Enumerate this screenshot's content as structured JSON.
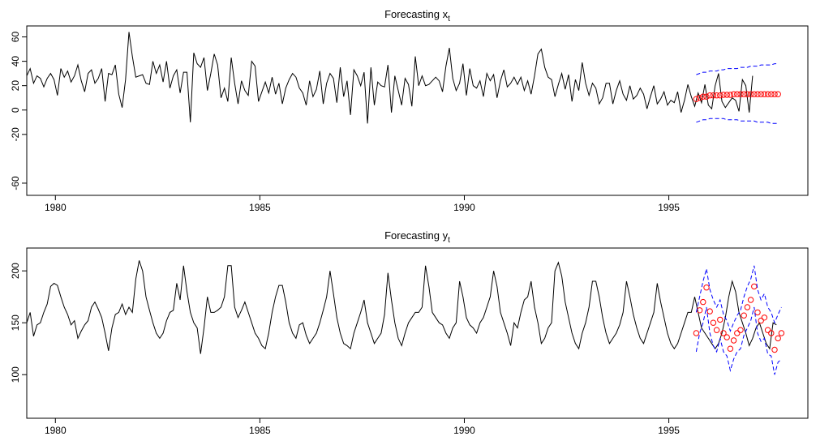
{
  "colors": {
    "series": "#000000",
    "forecast_points": "#ff0000",
    "bounds": "#0000ff"
  },
  "chart_data": [
    {
      "type": "line",
      "title": "Forecasting",
      "title_var": "x",
      "title_sub": "t",
      "xlabel": "",
      "ylabel": "",
      "xlim": [
        1979.3,
        1998.4
      ],
      "ylim": [
        -70,
        69
      ],
      "x_ticks": [
        1980,
        1985,
        1990,
        1995
      ],
      "y_ticks": [
        -60,
        -20,
        0,
        20,
        40,
        60
      ],
      "grid": false,
      "legend": "none",
      "start": 1979.3,
      "step": 0.08333,
      "series": [
        {
          "role": "observed",
          "values": [
            28,
            34,
            22,
            28,
            26,
            19,
            26,
            30,
            25,
            12,
            34,
            27,
            32,
            23,
            28,
            37,
            24,
            15,
            30,
            33,
            22,
            26,
            34,
            7,
            30,
            29,
            37,
            13,
            2,
            25,
            64,
            44,
            27,
            28,
            29,
            22,
            21,
            40,
            30,
            37,
            23,
            40,
            18,
            28,
            33,
            14,
            31,
            31,
            -10,
            47,
            38,
            35,
            43,
            16,
            30,
            46,
            37,
            10,
            18,
            7,
            43,
            22,
            5,
            24,
            16,
            12,
            40,
            36,
            7,
            15,
            23,
            14,
            27,
            13,
            22,
            5,
            18,
            25,
            30,
            27,
            18,
            14,
            4,
            24,
            11,
            17,
            32,
            5,
            22,
            30,
            26,
            6,
            35,
            11,
            24,
            -4,
            33,
            28,
            20,
            31,
            -11,
            35,
            4,
            23,
            20,
            19,
            37,
            -2,
            28,
            16,
            4,
            26,
            21,
            3,
            44,
            20,
            28,
            20,
            21,
            24,
            27,
            24,
            15,
            36,
            51,
            26,
            16,
            22,
            38,
            12,
            34,
            20,
            18,
            24,
            11,
            30,
            24,
            29,
            10,
            24,
            33,
            19,
            22,
            27,
            21,
            27,
            16,
            24,
            13,
            28,
            46,
            50,
            35,
            27,
            25,
            11,
            21,
            30,
            17,
            29,
            7,
            25,
            16,
            39,
            22,
            12,
            22,
            18,
            5,
            10,
            22,
            22,
            5,
            16,
            24,
            13,
            8,
            20,
            9,
            12,
            18,
            13,
            1,
            11,
            20,
            5,
            9,
            15,
            4,
            8,
            6,
            15,
            -2,
            8,
            21,
            11,
            3,
            14,
            6,
            21,
            4,
            1,
            20,
            30,
            7,
            2,
            6,
            10,
            8,
            -1,
            25,
            20,
            -2,
            28
          ]
        },
        {
          "role": "forecast",
          "start": 1995.67,
          "values": [
            9,
            10,
            11,
            11,
            12,
            12,
            12,
            12,
            12.5,
            12.5,
            12.5,
            13,
            13,
            13,
            13,
            13,
            13,
            13,
            13,
            13,
            13,
            13,
            13,
            13,
            13
          ]
        },
        {
          "role": "upper",
          "start": 1995.67,
          "values": [
            29,
            30,
            31,
            31,
            32,
            32,
            32,
            33,
            33,
            34,
            34,
            34,
            34,
            35,
            35,
            35,
            36,
            36,
            36,
            37,
            37,
            37,
            37,
            38,
            38
          ]
        },
        {
          "role": "lower",
          "start": 1995.67,
          "values": [
            -10,
            -9,
            -8,
            -8,
            -7,
            -7,
            -7,
            -7,
            -7,
            -8,
            -8,
            -8,
            -8,
            -9,
            -9,
            -9,
            -9,
            -9,
            -10,
            -10,
            -10,
            -10,
            -11,
            -11,
            -11
          ]
        }
      ]
    },
    {
      "type": "line",
      "title": "Forecasting",
      "title_var": "y",
      "title_sub": "t",
      "xlabel": "",
      "ylabel": "",
      "xlim": [
        1979.3,
        1998.4
      ],
      "ylim": [
        58,
        222
      ],
      "x_ticks": [
        1980,
        1985,
        1990,
        1995
      ],
      "y_ticks": [
        100,
        150,
        200
      ],
      "grid": false,
      "legend": "none",
      "start": 1979.3,
      "step": 0.08333,
      "series": [
        {
          "role": "observed",
          "values": [
            150,
            160,
            137,
            148,
            150,
            160,
            168,
            185,
            188,
            186,
            175,
            165,
            158,
            148,
            152,
            135,
            142,
            148,
            152,
            165,
            170,
            163,
            155,
            140,
            123,
            145,
            158,
            160,
            168,
            158,
            165,
            160,
            192,
            210,
            200,
            175,
            162,
            150,
            140,
            135,
            140,
            152,
            160,
            162,
            188,
            172,
            205,
            180,
            160,
            150,
            145,
            120,
            145,
            175,
            160,
            160,
            162,
            165,
            175,
            205,
            205,
            165,
            155,
            162,
            170,
            160,
            150,
            140,
            135,
            128,
            125,
            140,
            160,
            175,
            186,
            186,
            170,
            150,
            140,
            135,
            148,
            150,
            138,
            130,
            135,
            140,
            150,
            162,
            175,
            200,
            178,
            155,
            140,
            130,
            128,
            125,
            140,
            150,
            160,
            172,
            150,
            140,
            130,
            135,
            140,
            158,
            198,
            172,
            150,
            135,
            128,
            140,
            150,
            155,
            160,
            160,
            165,
            205,
            185,
            160,
            155,
            150,
            148,
            140,
            135,
            145,
            150,
            190,
            175,
            155,
            148,
            145,
            140,
            150,
            155,
            165,
            175,
            200,
            185,
            160,
            150,
            140,
            128,
            150,
            145,
            160,
            172,
            175,
            190,
            165,
            150,
            130,
            135,
            145,
            150,
            200,
            208,
            195,
            170,
            155,
            140,
            130,
            125,
            140,
            150,
            165,
            190,
            190,
            175,
            155,
            140,
            130,
            135,
            140,
            148,
            160,
            190,
            175,
            158,
            145,
            135,
            130,
            140,
            150,
            160,
            188,
            170,
            155,
            140,
            130,
            125,
            130,
            140,
            150,
            160,
            160,
            175,
            160,
            145,
            140,
            135,
            130,
            125,
            130,
            140,
            155,
            175,
            190,
            180,
            160,
            150,
            140,
            128,
            135,
            145,
            150,
            140,
            130,
            125,
            150,
            148
          ]
        },
        {
          "role": "forecast",
          "start": 1995.67,
          "values": [
            140,
            162,
            170,
            184,
            161,
            150,
            143,
            153,
            140,
            136,
            125,
            133,
            140,
            143,
            157,
            165,
            172,
            185,
            160,
            152,
            155,
            143,
            140,
            124,
            135,
            140
          ]
        },
        {
          "role": "upper",
          "start": 1995.67,
          "values": [
            160,
            175,
            190,
            202,
            182,
            172,
            165,
            172,
            158,
            152,
            142,
            150,
            157,
            162,
            175,
            185,
            192,
            205,
            182,
            172,
            178,
            165,
            160,
            150,
            158,
            165
          ]
        },
        {
          "role": "lower",
          "start": 1995.67,
          "values": [
            122,
            140,
            150,
            165,
            140,
            128,
            122,
            135,
            122,
            118,
            104,
            115,
            122,
            125,
            138,
            145,
            152,
            165,
            140,
            132,
            135,
            120,
            118,
            100,
            112,
            115
          ]
        }
      ]
    }
  ]
}
